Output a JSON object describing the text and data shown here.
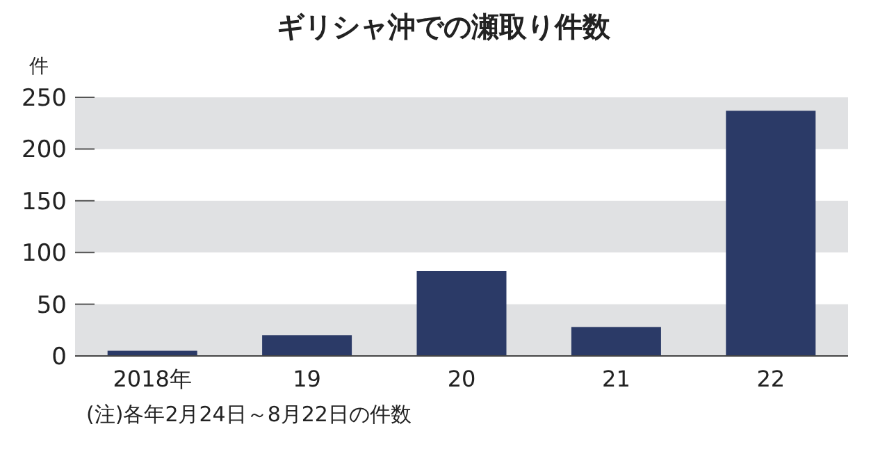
{
  "chart_data": {
    "type": "bar",
    "title": "ギリシャ沖での瀬取り件数",
    "ylabel": "件",
    "categories": [
      "2018年",
      "19",
      "20",
      "21",
      "22"
    ],
    "values": [
      5,
      20,
      82,
      28,
      237
    ],
    "color": "#2b3a67",
    "ylim": [
      0,
      250
    ],
    "yticks": [
      0,
      50,
      100,
      150,
      200,
      250
    ],
    "bands": [
      {
        "axis": "y",
        "from": 0,
        "to": 50,
        "color": "#e0e1e3"
      },
      {
        "axis": "y",
        "from": 100,
        "to": 150,
        "color": "#e0e1e3"
      },
      {
        "axis": "y",
        "from": 200,
        "to": 250,
        "color": "#e0e1e3"
      }
    ],
    "annotations": [
      "(注)各年2月24日～8月22日の件数"
    ]
  }
}
